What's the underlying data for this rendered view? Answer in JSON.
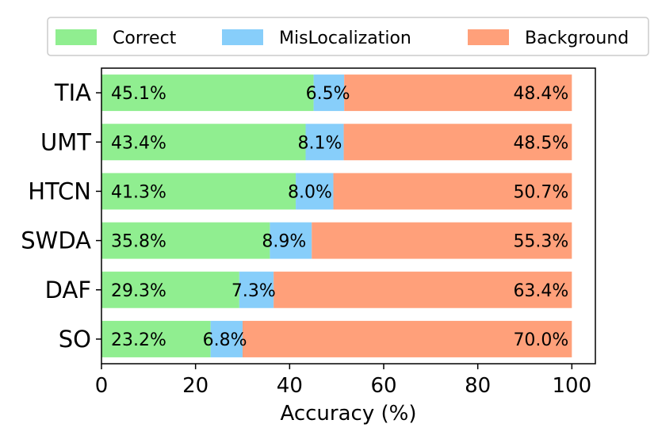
{
  "chart_data": {
    "type": "bar",
    "orientation": "horizontal",
    "stacked": true,
    "categories": [
      "TIA",
      "UMT",
      "HTCN",
      "SWDA",
      "DAF",
      "SO"
    ],
    "series": [
      {
        "name": "Correct",
        "color": "#90EE90",
        "values": [
          45.1,
          43.4,
          41.3,
          35.8,
          29.3,
          23.2
        ],
        "labels": [
          "45.1%",
          "43.4%",
          "41.3%",
          "35.8%",
          "29.3%",
          "23.2%"
        ]
      },
      {
        "name": "MisLocalization",
        "color": "#87CEFA",
        "values": [
          6.5,
          8.1,
          8.0,
          8.9,
          7.3,
          6.8
        ],
        "labels": [
          "6.5%",
          "8.1%",
          "8.0%",
          "8.9%",
          "7.3%",
          "6.8%"
        ]
      },
      {
        "name": "Background",
        "color": "#FFA07A",
        "values": [
          48.4,
          48.5,
          50.7,
          55.3,
          63.4,
          70.0
        ],
        "labels": [
          "48.4%",
          "48.5%",
          "50.7%",
          "55.3%",
          "63.4%",
          "70.0%"
        ]
      }
    ],
    "xlabel": "Accuracy (%)",
    "ylabel": "",
    "xlim": [
      0,
      105
    ],
    "xticks": [
      0,
      20,
      40,
      60,
      80,
      100
    ],
    "xtick_labels": [
      "0",
      "20",
      "40",
      "60",
      "80",
      "100"
    ],
    "grid": false,
    "legend_position": "top"
  }
}
